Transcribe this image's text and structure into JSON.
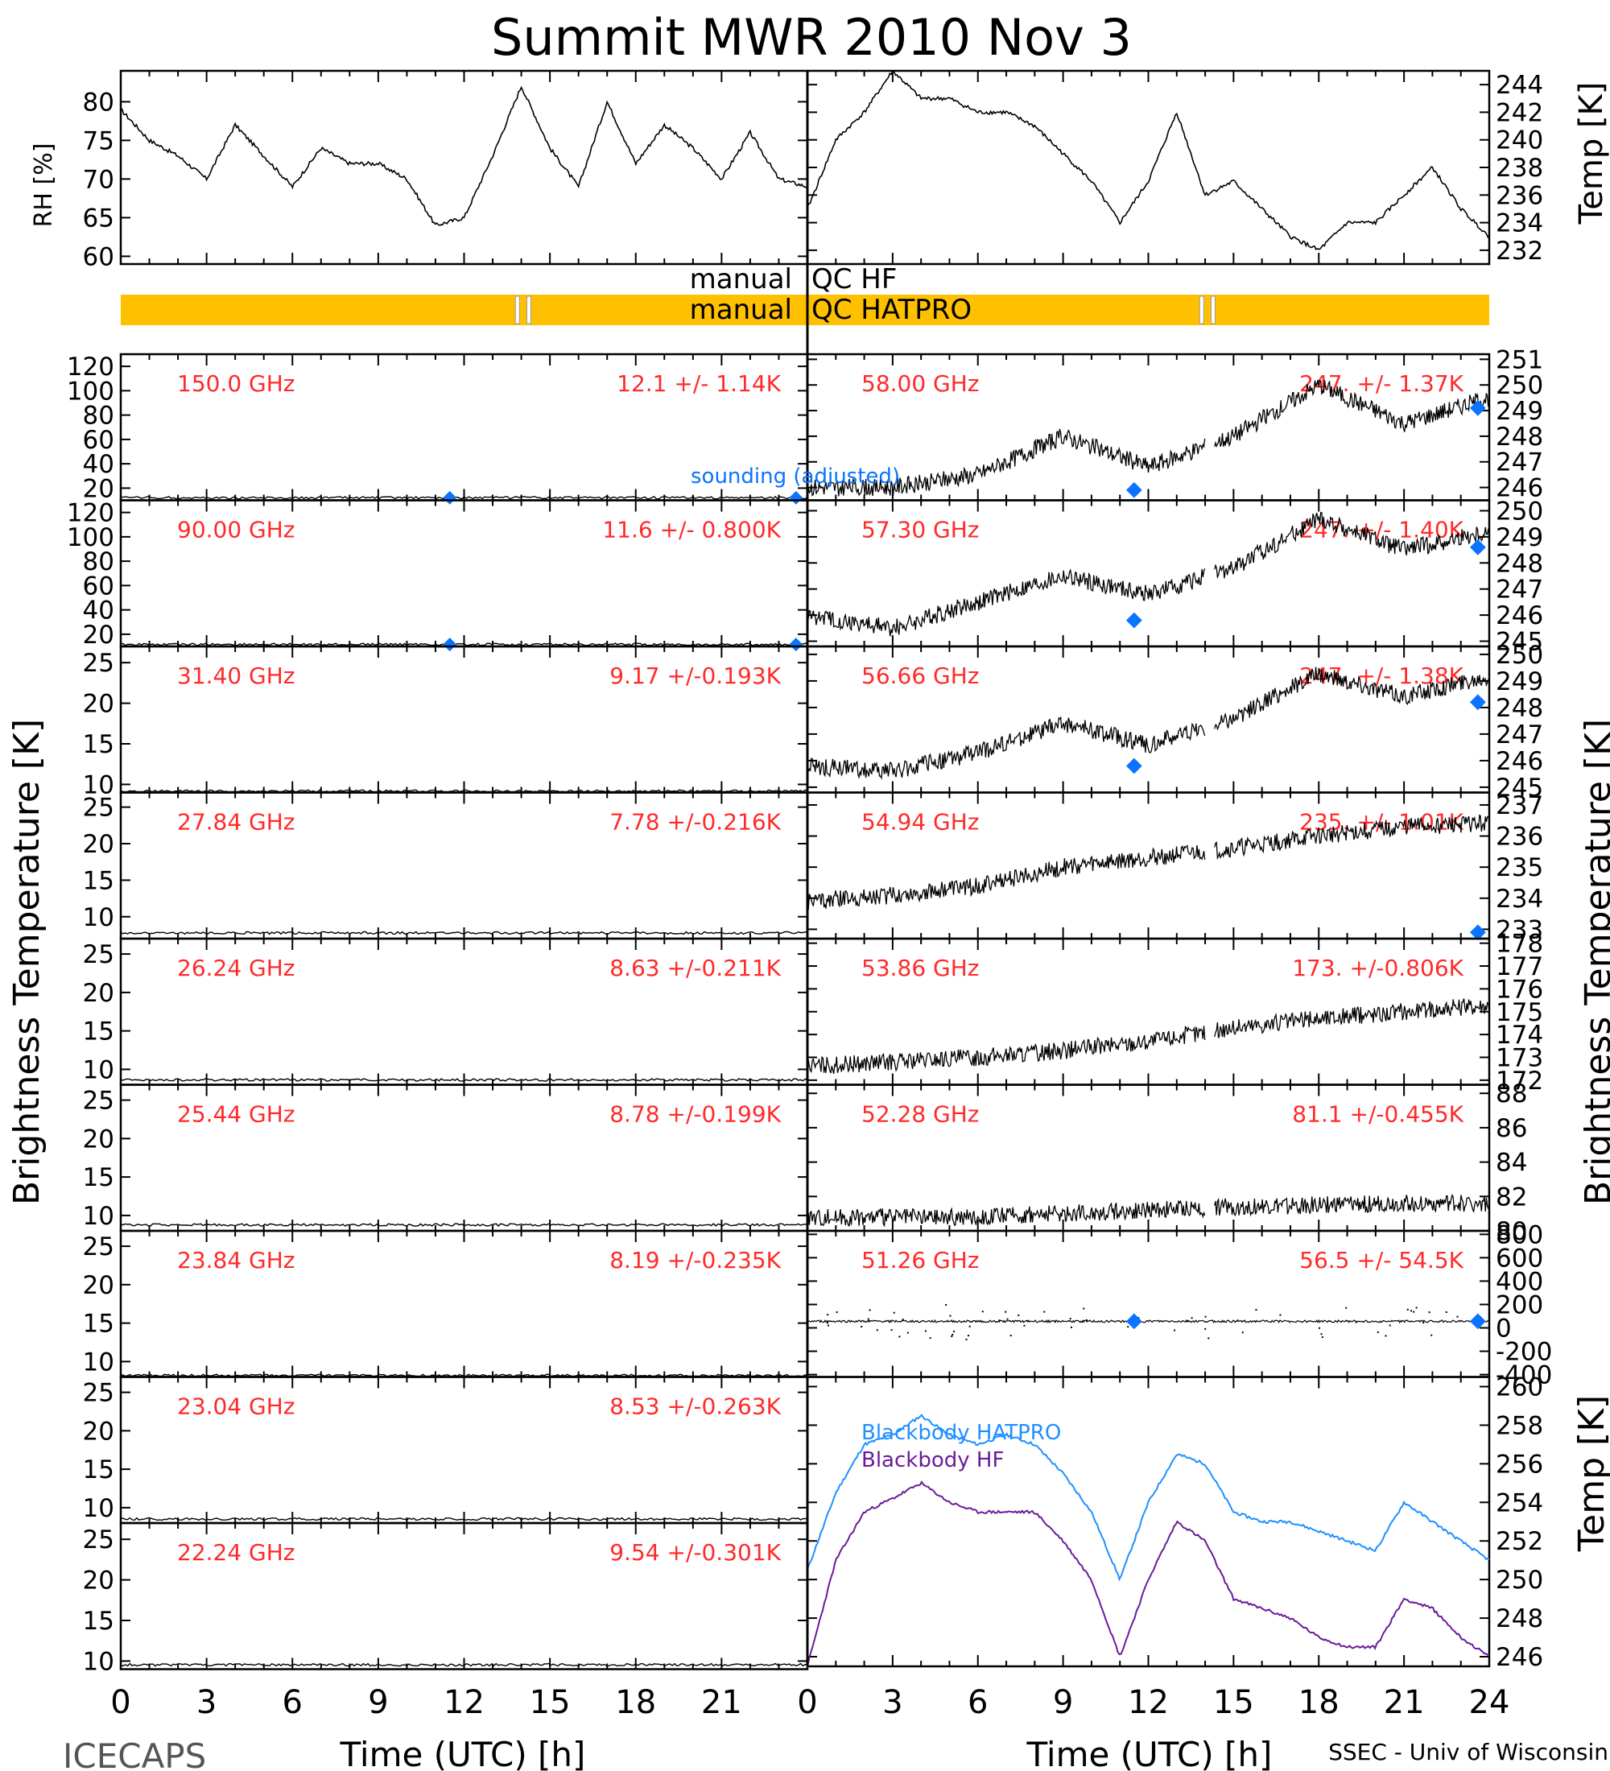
{
  "title": "Summit MWR 2010 Nov  3",
  "footer": {
    "left": "ICECAPS",
    "right": "SSEC - Univ of Wisconsin",
    "xlabel_left": "Time (UTC) [h]",
    "xlabel_right": "Time (UTC) [h]"
  },
  "side_labels": {
    "left": "Brightness Temperature [K]",
    "right": "Brightness Temperature [K]",
    "rh": "RH [%]",
    "temp": "Temp [K]",
    "temp_bottom": "Temp [K]"
  },
  "qc": {
    "label_manual_1": "manual",
    "label_hf": "QC HF",
    "label_manual_2": "manual",
    "label_hatpro": "QC HATPRO",
    "color": "#ffc000",
    "gaps_hours": [
      13.9,
      14.3,
      37.9,
      38.3
    ]
  },
  "labels": {
    "sounding": "sounding (adjusted)",
    "bb_hatpro": "Blackbody HATPRO",
    "bb_hf": "Blackbody HF"
  },
  "chart_data": {
    "type": "line",
    "x_ticks_left": [
      "0",
      "3",
      "6",
      "9",
      "12",
      "15",
      "18",
      "21"
    ],
    "x_ticks_right": [
      "0",
      "3",
      "6",
      "9",
      "12",
      "15",
      "18",
      "21",
      "24"
    ],
    "xlim": [
      0,
      24
    ],
    "colors": {
      "data": "#000000",
      "annotation": "#ff2a2a",
      "sounding": "#0a73ff",
      "bb_hatpro": "#1e90ff",
      "bb_hf": "#6a1b9a"
    },
    "met": {
      "rh": {
        "ylim": [
          59,
          84
        ],
        "ticks": [
          "80",
          "75",
          "70",
          "65",
          "60"
        ],
        "x": [
          0,
          1,
          2,
          3,
          4,
          5,
          6,
          7,
          8,
          9,
          10,
          11,
          12,
          13,
          14,
          15,
          16,
          17,
          18,
          19,
          20,
          21,
          22,
          23,
          24
        ],
        "y": [
          79,
          75,
          73,
          70,
          77,
          73,
          69,
          74,
          72,
          72,
          70,
          64,
          65,
          73,
          82,
          74,
          69,
          80,
          72,
          77,
          74,
          70,
          76,
          70,
          69
        ]
      },
      "temp": {
        "ylim": [
          231,
          245
        ],
        "ticks": [
          "244",
          "242",
          "240",
          "238",
          "236",
          "234",
          "232"
        ],
        "x": [
          0,
          1,
          2,
          3,
          4,
          5,
          6,
          7,
          8,
          9,
          10,
          11,
          12,
          13,
          14,
          15,
          16,
          17,
          18,
          19,
          20,
          21,
          22,
          23,
          24
        ],
        "y": [
          235,
          240,
          242,
          245,
          243,
          243,
          242,
          242,
          241,
          239,
          237,
          234,
          237,
          242,
          236,
          237,
          235,
          233,
          232,
          234,
          234,
          236,
          238,
          235,
          233
        ]
      }
    },
    "left_panels": [
      {
        "freq": "150.0 GHz",
        "stat": "12.1 +/-  1.14K",
        "ticks": [
          "120",
          "100",
          "80",
          "60",
          "40",
          "20"
        ],
        "ylim": [
          10,
          130
        ],
        "level": 12.1
      },
      {
        "freq": "90.00 GHz",
        "stat": "11.6 +/- 0.800K",
        "ticks": [
          "120",
          "100",
          "80",
          "60",
          "40",
          "20"
        ],
        "ylim": [
          10,
          130
        ],
        "level": 11.6
      },
      {
        "freq": "31.40 GHz",
        "stat": "9.17 +/-0.193K",
        "ticks": [
          "25",
          "20",
          "15",
          "10"
        ],
        "ylim": [
          9,
          27
        ],
        "level": 9.17
      },
      {
        "freq": "27.84 GHz",
        "stat": "7.78 +/-0.216K",
        "ticks": [
          "25",
          "20",
          "15",
          "10"
        ],
        "ylim": [
          7,
          27
        ],
        "level": 7.78
      },
      {
        "freq": "26.24 GHz",
        "stat": "8.63 +/-0.211K",
        "ticks": [
          "25",
          "20",
          "15",
          "10"
        ],
        "ylim": [
          8,
          27
        ],
        "level": 8.63
      },
      {
        "freq": "25.44 GHz",
        "stat": "8.78 +/-0.199K",
        "ticks": [
          "25",
          "20",
          "15",
          "10"
        ],
        "ylim": [
          8,
          27
        ],
        "level": 8.78
      },
      {
        "freq": "23.84 GHz",
        "stat": "8.19 +/-0.235K",
        "ticks": [
          "25",
          "20",
          "15",
          "10"
        ],
        "ylim": [
          8,
          27
        ],
        "level": 8.19
      },
      {
        "freq": "23.04 GHz",
        "stat": "8.53 +/-0.263K",
        "ticks": [
          "25",
          "20",
          "15",
          "10"
        ],
        "ylim": [
          8,
          27
        ],
        "level": 8.53
      },
      {
        "freq": "22.24 GHz",
        "stat": "9.54 +/-0.301K",
        "ticks": [
          "25",
          "20",
          "15",
          "10"
        ],
        "ylim": [
          9,
          27
        ],
        "level": 9.54
      }
    ],
    "right_panels": [
      {
        "freq": "58.00 GHz",
        "stat": "247. +/- 1.37K",
        "ticks": [
          "251",
          "250",
          "249",
          "248",
          "247",
          "246"
        ],
        "ylim": [
          245.5,
          251.2
        ],
        "trend": [
          246.0,
          246.0,
          246.5,
          248.0,
          246.8,
          248.0,
          250.0,
          248.5,
          249.5
        ],
        "sounding": [
          [
            11.5,
            245.9
          ],
          [
            23.6,
            249.1
          ]
        ]
      },
      {
        "freq": "57.30 GHz",
        "stat": "247. +/- 1.40K",
        "ticks": [
          "250",
          "249",
          "248",
          "247",
          "246",
          "245"
        ],
        "ylim": [
          244.8,
          250.4
        ],
        "trend": [
          246.0,
          245.5,
          246.5,
          247.5,
          246.8,
          247.8,
          249.7,
          248.5,
          249.2
        ],
        "sounding": [
          [
            11.5,
            245.8
          ],
          [
            23.6,
            248.6
          ]
        ]
      },
      {
        "freq": "56.66 GHz",
        "stat": "247. +/- 1.38K",
        "ticks": [
          "250",
          "249",
          "248",
          "247",
          "246",
          "245"
        ],
        "ylim": [
          244.8,
          250.3
        ],
        "trend": [
          245.8,
          245.6,
          246.3,
          247.4,
          246.6,
          247.6,
          249.3,
          248.4,
          249.2
        ],
        "sounding": [
          [
            11.5,
            245.8
          ],
          [
            23.6,
            248.2
          ]
        ]
      },
      {
        "freq": "54.94 GHz",
        "stat": "235. +/- 1.01K",
        "ticks": [
          "237",
          "236",
          "235",
          "234",
          "233"
        ],
        "ylim": [
          232.7,
          237.4
        ],
        "trend": [
          233.9,
          234.1,
          234.4,
          235.0,
          235.3,
          235.6,
          236.0,
          236.3,
          236.4
        ],
        "sounding": [
          [
            23.6,
            232.9
          ]
        ]
      },
      {
        "freq": "53.86 GHz",
        "stat": "173. +/-0.806K",
        "ticks": [
          "178",
          "177",
          "176",
          "175",
          "174",
          "173",
          "172"
        ],
        "ylim": [
          171.8,
          178.2
        ],
        "trend": [
          172.6,
          172.8,
          173.0,
          173.3,
          173.7,
          174.3,
          174.7,
          175.0,
          175.3
        ]
      },
      {
        "freq": "52.28 GHz",
        "stat": "81.1 +/-0.455K",
        "ticks": [
          "88",
          "86",
          "84",
          "82",
          "80"
        ],
        "ylim": [
          80,
          88.5
        ],
        "trend": [
          80.8,
          80.8,
          80.8,
          81.0,
          81.2,
          81.4,
          81.5,
          81.6,
          81.6
        ]
      },
      {
        "freq": "51.26 GHz",
        "stat": "56.5 +/- 54.5K",
        "ticks": [
          "800",
          "600",
          "400",
          "200",
          "0",
          "-200",
          "-400"
        ],
        "ylim": [
          -420,
          830
        ],
        "trend": [
          56,
          56,
          56,
          56,
          56,
          56,
          56,
          56,
          56
        ],
        "sounding": [
          [
            11.5,
            56
          ],
          [
            23.6,
            56
          ]
        ]
      }
    ],
    "blackbody": {
      "ticks": [
        "260",
        "258",
        "256",
        "254",
        "252",
        "250",
        "248",
        "246"
      ],
      "ylim": [
        245.5,
        260.5
      ],
      "x": [
        0,
        1,
        2,
        3,
        4,
        5,
        6,
        7,
        8,
        9,
        10,
        11,
        12,
        13,
        14,
        15,
        16,
        17,
        18,
        19,
        20,
        21,
        22,
        23,
        24
      ],
      "hatpro": [
        250.5,
        254.5,
        257,
        257.5,
        258.5,
        257.5,
        257,
        257.5,
        257,
        255.5,
        253.5,
        250,
        254,
        256.5,
        256,
        253.5,
        253,
        253,
        252.5,
        252,
        251.5,
        254,
        253,
        252,
        251
      ],
      "hf": [
        245.5,
        251,
        253.5,
        254.2,
        255,
        254,
        253.5,
        253.5,
        253.5,
        252,
        250,
        246,
        250,
        253,
        252,
        249,
        248.5,
        248,
        247,
        246.5,
        246.5,
        249,
        248.5,
        247,
        246
      ]
    }
  }
}
